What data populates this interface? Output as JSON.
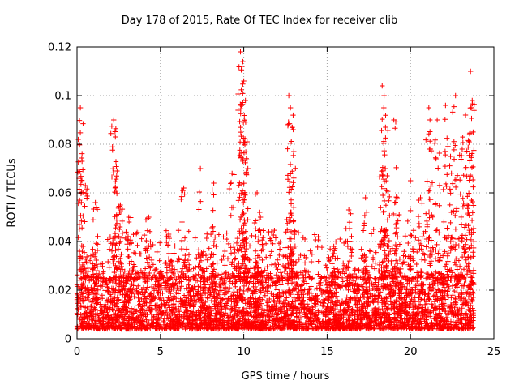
{
  "chart_data": {
    "type": "scatter",
    "title": "Day 178 of 2015, Rate Of TEC Index for receiver clib",
    "xlabel": "GPS time / hours",
    "ylabel": "ROTI / TECUs",
    "xlim": [
      0,
      25
    ],
    "ylim": [
      0,
      0.12
    ],
    "x_ticks": [
      0,
      5,
      10,
      15,
      20,
      25
    ],
    "x_tick_labels": [
      "0",
      "5",
      "10",
      "15",
      "20",
      "25"
    ],
    "y_ticks": [
      0,
      0.02,
      0.04,
      0.06,
      0.08,
      0.1,
      0.12
    ],
    "y_tick_labels": [
      "0",
      "0.02",
      "0.04",
      "0.06",
      "0.08",
      "0.1",
      "0.12"
    ],
    "grid": true,
    "marker": "+",
    "color": "#ff0000",
    "series": [
      {
        "name": "ROTI",
        "baseline_range": [
          0.004,
          0.025
        ],
        "x_range": [
          0,
          23.8
        ],
        "peaks": [
          {
            "x": 0.2,
            "y": 0.095
          },
          {
            "x": 0.3,
            "y": 0.073
          },
          {
            "x": 0.5,
            "y": 0.063
          },
          {
            "x": 1.1,
            "y": 0.056
          },
          {
            "x": 2.2,
            "y": 0.09
          },
          {
            "x": 2.3,
            "y": 0.083
          },
          {
            "x": 2.4,
            "y": 0.069
          },
          {
            "x": 2.6,
            "y": 0.055
          },
          {
            "x": 3.1,
            "y": 0.05
          },
          {
            "x": 4.3,
            "y": 0.05
          },
          {
            "x": 5.5,
            "y": 0.043
          },
          {
            "x": 6.4,
            "y": 0.062
          },
          {
            "x": 7.4,
            "y": 0.07
          },
          {
            "x": 8.2,
            "y": 0.064
          },
          {
            "x": 9.3,
            "y": 0.068
          },
          {
            "x": 9.8,
            "y": 0.118
          },
          {
            "x": 9.9,
            "y": 0.112
          },
          {
            "x": 10.0,
            "y": 0.106
          },
          {
            "x": 10.1,
            "y": 0.098
          },
          {
            "x": 10.2,
            "y": 0.081
          },
          {
            "x": 10.8,
            "y": 0.06
          },
          {
            "x": 11.0,
            "y": 0.05
          },
          {
            "x": 12.7,
            "y": 0.1
          },
          {
            "x": 12.8,
            "y": 0.095
          },
          {
            "x": 12.9,
            "y": 0.087
          },
          {
            "x": 13.0,
            "y": 0.077
          },
          {
            "x": 15.4,
            "y": 0.038
          },
          {
            "x": 16.3,
            "y": 0.053
          },
          {
            "x": 17.3,
            "y": 0.058
          },
          {
            "x": 18.3,
            "y": 0.104
          },
          {
            "x": 18.4,
            "y": 0.095
          },
          {
            "x": 18.5,
            "y": 0.087
          },
          {
            "x": 18.6,
            "y": 0.067
          },
          {
            "x": 19.0,
            "y": 0.09
          },
          {
            "x": 19.2,
            "y": 0.058
          },
          {
            "x": 20.0,
            "y": 0.065
          },
          {
            "x": 20.6,
            "y": 0.058
          },
          {
            "x": 21.1,
            "y": 0.095
          },
          {
            "x": 21.2,
            "y": 0.078
          },
          {
            "x": 21.6,
            "y": 0.09
          },
          {
            "x": 22.1,
            "y": 0.096
          },
          {
            "x": 22.4,
            "y": 0.075
          },
          {
            "x": 22.7,
            "y": 0.1
          },
          {
            "x": 23.1,
            "y": 0.078
          },
          {
            "x": 23.3,
            "y": 0.092
          },
          {
            "x": 23.6,
            "y": 0.11
          },
          {
            "x": 23.7,
            "y": 0.098
          }
        ]
      }
    ]
  }
}
